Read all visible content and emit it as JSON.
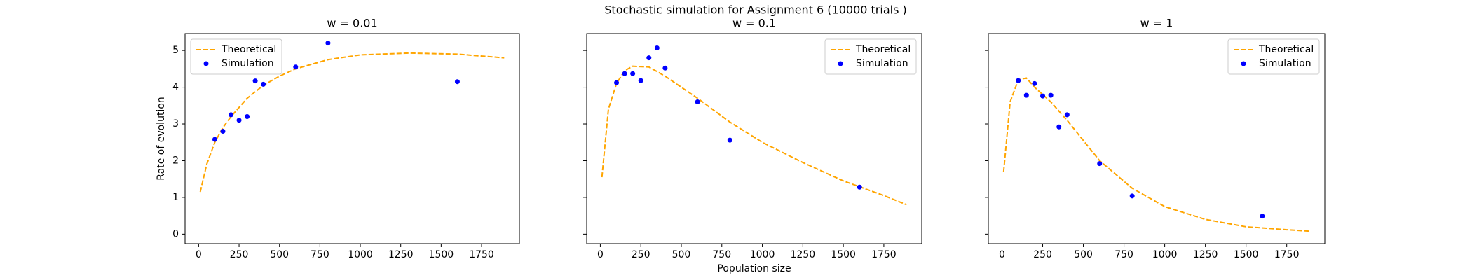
{
  "title": "Stochastic simulation for Assignment 6 (10000 trials )",
  "chart_data": [
    {
      "type": "line",
      "title": "w = 0.01",
      "ylabel": "Rate of evolution",
      "legend": "upper left",
      "xlim": [
        -84,
        1984
      ],
      "ylim": [
        -0.26,
        5.46
      ],
      "xticks": [
        0,
        250,
        500,
        750,
        1000,
        1250,
        1500,
        1750
      ],
      "yticks": [
        0,
        1,
        2,
        3,
        4,
        5
      ],
      "series": [
        {
          "name": "Theoretical",
          "kind": "line",
          "color": "#ffa500",
          "x": [
            10,
            50,
            100,
            150,
            200,
            300,
            400,
            500,
            600,
            800,
            1000,
            1300,
            1600,
            1890
          ],
          "values": [
            1.15,
            1.9,
            2.5,
            2.9,
            3.2,
            3.7,
            4.05,
            4.3,
            4.5,
            4.75,
            4.88,
            4.93,
            4.9,
            4.8
          ]
        },
        {
          "name": "Simulation",
          "kind": "scatter",
          "color": "#0000ff",
          "x": [
            100,
            150,
            200,
            250,
            300,
            350,
            400,
            600,
            800,
            1600
          ],
          "values": [
            2.58,
            2.8,
            3.25,
            3.1,
            3.2,
            4.17,
            4.08,
            4.55,
            5.2,
            4.15
          ]
        }
      ]
    },
    {
      "type": "line",
      "title": "w = 0.1",
      "xlabel": "Population size",
      "legend": "upper right",
      "xlim": [
        -84,
        1984
      ],
      "ylim": [
        -0.26,
        5.46
      ],
      "xticks": [
        0,
        250,
        500,
        750,
        1000,
        1250,
        1500,
        1750
      ],
      "sharey": true,
      "series": [
        {
          "name": "Theoretical",
          "kind": "line",
          "color": "#ffa500",
          "x": [
            10,
            50,
            100,
            150,
            200,
            300,
            400,
            600,
            800,
            1000,
            1250,
            1500,
            1750,
            1890
          ],
          "values": [
            1.55,
            3.4,
            4.1,
            4.45,
            4.57,
            4.55,
            4.3,
            3.7,
            3.05,
            2.5,
            1.95,
            1.45,
            1.05,
            0.8
          ]
        },
        {
          "name": "Simulation",
          "kind": "scatter",
          "color": "#0000ff",
          "x": [
            100,
            150,
            200,
            250,
            300,
            350,
            400,
            600,
            800,
            1600
          ],
          "values": [
            4.12,
            4.37,
            4.37,
            4.18,
            4.8,
            5.07,
            4.52,
            3.6,
            2.56,
            1.28
          ]
        }
      ]
    },
    {
      "type": "line",
      "title": "w = 1",
      "legend": "upper right",
      "xlim": [
        -84,
        1984
      ],
      "ylim": [
        -0.26,
        5.46
      ],
      "xticks": [
        0,
        250,
        500,
        750,
        1000,
        1250,
        1500,
        1750
      ],
      "sharey": true,
      "series": [
        {
          "name": "Theoretical",
          "kind": "line",
          "color": "#ffa500",
          "x": [
            10,
            50,
            100,
            150,
            200,
            300,
            400,
            600,
            800,
            1000,
            1250,
            1500,
            1750,
            1890
          ],
          "values": [
            1.7,
            3.6,
            4.2,
            4.25,
            4.0,
            3.6,
            3.1,
            2.0,
            1.25,
            0.75,
            0.4,
            0.2,
            0.12,
            0.08
          ]
        },
        {
          "name": "Simulation",
          "kind": "scatter",
          "color": "#0000ff",
          "x": [
            100,
            150,
            200,
            250,
            300,
            350,
            400,
            600,
            800,
            1600
          ],
          "values": [
            4.18,
            3.78,
            4.1,
            3.76,
            3.78,
            2.92,
            3.25,
            1.92,
            1.04,
            0.49
          ]
        }
      ]
    }
  ]
}
